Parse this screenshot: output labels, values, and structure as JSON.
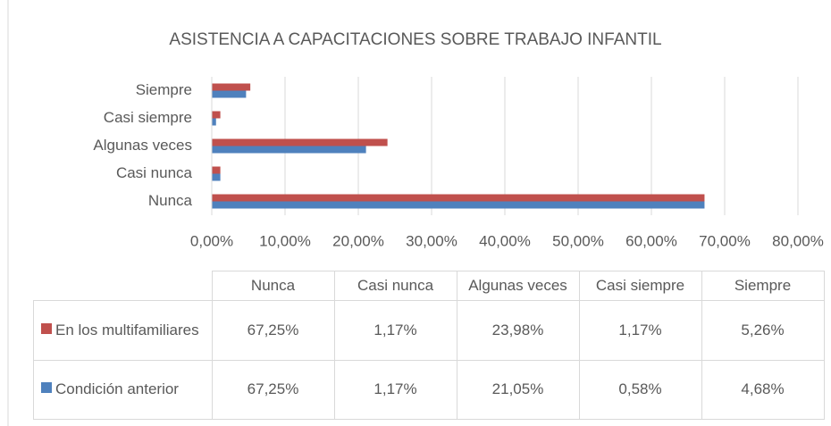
{
  "chart_data": {
    "type": "bar",
    "orientation": "horizontal",
    "title": "ASISTENCIA A CAPACITACIONES SOBRE TRABAJO INFANTIL",
    "categories": [
      "Nunca",
      "Casi nunca",
      "Algunas veces",
      "Casi siempre",
      "Siempre"
    ],
    "series": [
      {
        "name": "En los multifamiliares",
        "color": "#c0504d",
        "values": [
          67.25,
          1.17,
          23.98,
          1.17,
          5.26
        ],
        "value_labels": [
          "67,25%",
          "1,17%",
          "23,98%",
          "1,17%",
          "5,26%"
        ]
      },
      {
        "name": "Condición anterior",
        "color": "#4f81bd",
        "values": [
          67.25,
          1.17,
          21.05,
          0.58,
          4.68
        ],
        "value_labels": [
          "67,25%",
          "1,17%",
          "21,05%",
          "0,58%",
          "4,68%"
        ]
      }
    ],
    "xlim": [
      0,
      80
    ],
    "xticks": [
      {
        "value": 0,
        "label": "0,00%"
      },
      {
        "value": 10,
        "label": "10,00%"
      },
      {
        "value": 20,
        "label": "20,00%"
      },
      {
        "value": 30,
        "label": "30,00%"
      },
      {
        "value": 40,
        "label": "40,00%"
      },
      {
        "value": 50,
        "label": "50,00%"
      },
      {
        "value": 60,
        "label": "60,00%"
      },
      {
        "value": 70,
        "label": "70,00%"
      },
      {
        "value": 80,
        "label": "80,00%"
      }
    ],
    "grid": true,
    "data_table": true
  }
}
